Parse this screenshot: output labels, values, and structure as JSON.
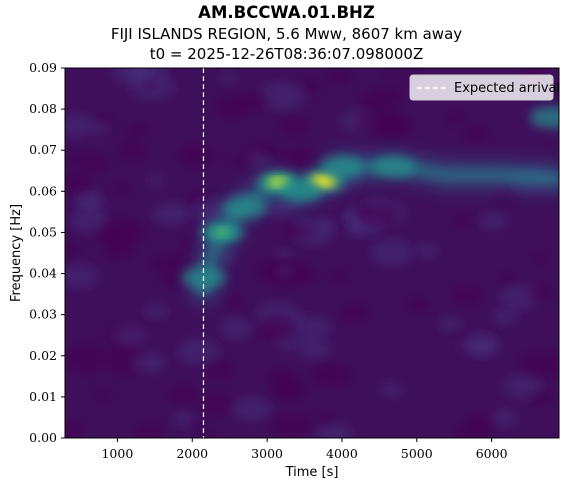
{
  "chart_data": {
    "type": "heatmap",
    "title": "AM.BCCWA.01.BHZ",
    "subtitle": "FIJI ISLANDS REGION, 5.6 Mww, 8607 km away",
    "subtitle2": "t0 = 2025-12-26T08:36:07.098000Z",
    "xlabel": "Time [s]",
    "ylabel": "Frequency [Hz]",
    "xlim": [
      300,
      6900
    ],
    "ylim": [
      0.0,
      0.09
    ],
    "x_ticks": [
      1000,
      2000,
      3000,
      4000,
      5000,
      6000
    ],
    "y_ticks": [
      0.0,
      0.01,
      0.02,
      0.03,
      0.04,
      0.05,
      0.06,
      0.07,
      0.08,
      0.09
    ],
    "x_tick_labels": [
      "1000",
      "2000",
      "3000",
      "4000",
      "5000",
      "6000"
    ],
    "y_tick_labels": [
      "0.00",
      "0.01",
      "0.02",
      "0.03",
      "0.04",
      "0.05",
      "0.06",
      "0.07",
      "0.08",
      "0.09"
    ],
    "colormap": "viridis",
    "expected_arrival": {
      "time": 2150,
      "label": "Expected arrival",
      "color": "#ffffff",
      "style": "dashed"
    },
    "legend_position": "top-right",
    "energy_features": [
      {
        "time": 3150,
        "freq": 0.0622,
        "intensity": 0.85
      },
      {
        "time": 3750,
        "freq": 0.0625,
        "intensity": 1.0
      },
      {
        "time": 2400,
        "freq": 0.05,
        "intensity": 0.6
      },
      {
        "time": 2700,
        "freq": 0.056,
        "intensity": 0.45
      },
      {
        "time": 3450,
        "freq": 0.06,
        "intensity": 0.45
      },
      {
        "time": 2150,
        "freq": 0.039,
        "intensity": 0.35
      },
      {
        "time": 4000,
        "freq": 0.066,
        "intensity": 0.3
      },
      {
        "time": 4700,
        "freq": 0.066,
        "intensity": 0.25
      },
      {
        "time": 6800,
        "freq": 0.078,
        "intensity": 0.3
      }
    ]
  }
}
